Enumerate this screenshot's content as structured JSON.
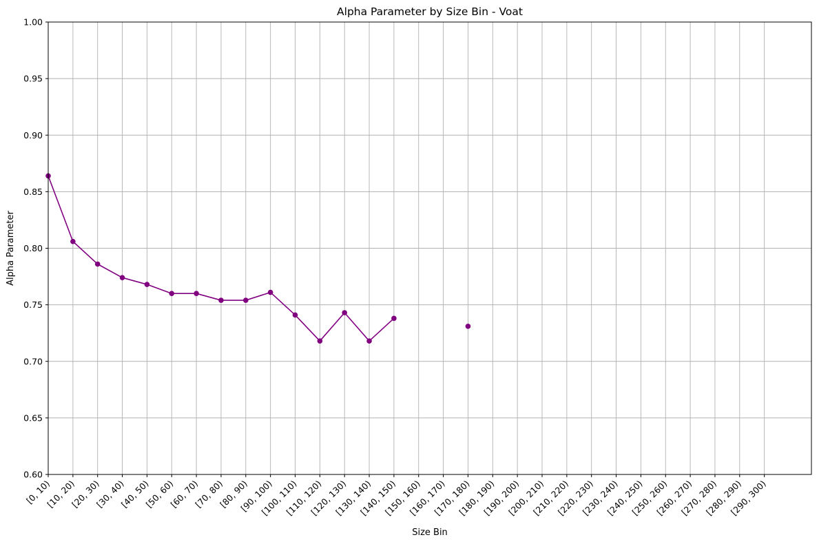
{
  "chart_data": {
    "type": "line",
    "title": "Alpha Parameter by Size Bin - Voat",
    "xlabel": "Size Bin",
    "ylabel": "Alpha Parameter",
    "ylim": [
      0.6,
      1.0
    ],
    "yticks": [
      "0.60",
      "0.65",
      "0.70",
      "0.75",
      "0.80",
      "0.85",
      "0.90",
      "0.95",
      "1.00"
    ],
    "categories": [
      "[0, 10)",
      "[10, 20)",
      "[20, 30)",
      "[30, 40)",
      "[40, 50)",
      "[50, 60)",
      "[60, 70)",
      "[70, 80)",
      "[80, 90)",
      "[90, 100)",
      "[100, 110)",
      "[110, 120)",
      "[120, 130)",
      "[130, 140)",
      "[140, 150)",
      "[150, 160)",
      "[160, 170)",
      "[170, 180)",
      "[180, 190)",
      "[190, 200)",
      "[200, 210)",
      "[210, 220)",
      "[220, 230)",
      "[230, 240)",
      "[240, 250)",
      "[250, 260)",
      "[260, 270)",
      "[270, 280)",
      "[280, 290)",
      "[290, 300)"
    ],
    "series": [
      {
        "values": [
          0.864,
          0.806,
          0.786,
          0.774,
          0.768,
          0.76,
          0.76,
          0.754,
          0.754,
          0.761,
          0.741,
          0.718,
          0.743,
          0.718,
          0.738,
          null,
          null,
          0.731,
          null,
          null,
          null,
          null,
          null,
          null,
          null,
          null,
          null,
          null,
          null,
          null
        ],
        "color": "#800080"
      }
    ],
    "grid": true,
    "colors": {
      "line": "#800080",
      "grid": "#b0b0b0",
      "axes": "#000000"
    }
  }
}
